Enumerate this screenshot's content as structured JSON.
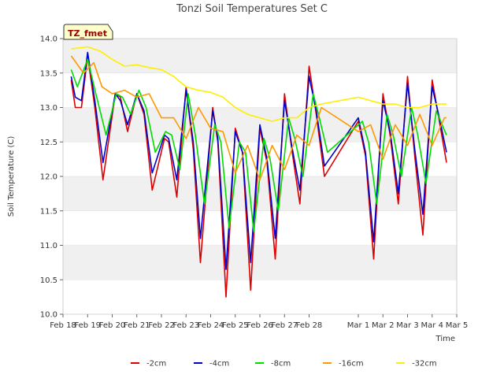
{
  "chart_data": {
    "type": "line",
    "title": "Tonzi Soil Temperatures Set C",
    "xlabel": "Time",
    "ylabel": "Soil Temperature (C)",
    "badge": "TZ_fmet",
    "ylim": [
      10.0,
      14.0
    ],
    "yticks": [
      10.0,
      10.5,
      11.0,
      11.5,
      12.0,
      12.5,
      13.0,
      13.5,
      14.0
    ],
    "ytick_labels": [
      "10.0",
      "10.5",
      "11.0",
      "11.5",
      "12.0",
      "12.5",
      "13.0",
      "13.5",
      "14.0"
    ],
    "xlim": [
      "2024-02-18",
      "2024-03-05"
    ],
    "xticks": [
      "2024-02-18",
      "2024-02-19",
      "2024-02-20",
      "2024-02-21",
      "2024-02-22",
      "2024-02-23",
      "2024-02-24",
      "2024-02-25",
      "2024-02-26",
      "2024-02-27",
      "2024-02-28",
      "2024-03-01",
      "2024-03-02",
      "2024-03-03",
      "2024-03-04",
      "2024-03-05"
    ],
    "xtick_labels": [
      "Feb 18",
      "Feb 19",
      "Feb 20",
      "Feb 21",
      "Feb 22",
      "Feb 23",
      "Feb 24",
      "Feb 25",
      "Feb 26",
      "Feb 27",
      "Feb 28",
      "Mar 1",
      "Mar 2",
      "Mar 3",
      "Mar 4",
      "Mar 5"
    ],
    "grid": "horizontal bands",
    "legend_position": "bottom",
    "series": [
      {
        "name": "-2cm",
        "color": "#dd0000",
        "x": [
          "2024-02-18T08:00",
          "2024-02-18T12:00",
          "2024-02-18T18:00",
          "2024-02-19T00:00",
          "2024-02-19T07:00",
          "2024-02-19T15:00",
          "2024-02-20T03:00",
          "2024-02-20T08:00",
          "2024-02-20T15:00",
          "2024-02-21T00:00",
          "2024-02-21T07:00",
          "2024-02-21T15:00",
          "2024-02-22T03:00",
          "2024-02-22T07:00",
          "2024-02-22T15:00",
          "2024-02-23T00:00",
          "2024-02-23T07:00",
          "2024-02-23T14:00",
          "2024-02-24T02:00",
          "2024-02-24T07:00",
          "2024-02-24T15:00",
          "2024-02-25T00:00",
          "2024-02-25T07:00",
          "2024-02-25T15:00",
          "2024-02-26T00:00",
          "2024-02-26T07:00",
          "2024-02-26T15:00",
          "2024-02-27T00:00",
          "2024-02-27T07:00",
          "2024-02-27T15:00",
          "2024-02-28T00:00",
          "2024-02-28T07:00",
          "2024-02-28T15:00",
          "2024-03-01T00:00",
          "2024-03-01T07:00",
          "2024-03-01T15:00",
          "2024-03-02T00:00",
          "2024-03-02T07:00",
          "2024-03-02T15:00",
          "2024-03-03T00:00",
          "2024-03-03T07:00",
          "2024-03-03T15:00",
          "2024-03-04T00:00",
          "2024-03-04T07:00",
          "2024-03-04T14:00"
        ],
        "y": [
          13.4,
          13.0,
          13.0,
          13.75,
          13.0,
          11.95,
          13.2,
          13.15,
          12.65,
          13.2,
          12.9,
          11.8,
          12.55,
          12.5,
          11.7,
          13.3,
          12.4,
          10.75,
          13.0,
          12.5,
          10.25,
          12.7,
          12.35,
          10.35,
          12.7,
          12.2,
          10.8,
          13.2,
          12.4,
          11.6,
          13.6,
          12.9,
          12.0,
          12.8,
          12.3,
          10.8,
          13.2,
          12.6,
          11.6,
          13.45,
          12.3,
          11.15,
          13.4,
          12.8,
          12.2
        ]
      },
      {
        "name": "-4cm",
        "color": "#0000cc",
        "x": [
          "2024-02-18T08:00",
          "2024-02-18T12:00",
          "2024-02-18T18:00",
          "2024-02-19T00:00",
          "2024-02-19T07:00",
          "2024-02-19T15:00",
          "2024-02-20T03:00",
          "2024-02-20T08:00",
          "2024-02-20T15:00",
          "2024-02-21T00:00",
          "2024-02-21T07:00",
          "2024-02-21T15:00",
          "2024-02-22T03:00",
          "2024-02-22T07:00",
          "2024-02-22T15:00",
          "2024-02-23T00:00",
          "2024-02-23T07:00",
          "2024-02-23T14:00",
          "2024-02-24T02:00",
          "2024-02-24T07:00",
          "2024-02-24T15:00",
          "2024-02-25T00:00",
          "2024-02-25T07:00",
          "2024-02-25T15:00",
          "2024-02-26T00:00",
          "2024-02-26T07:00",
          "2024-02-26T15:00",
          "2024-02-27T00:00",
          "2024-02-27T07:00",
          "2024-02-27T15:00",
          "2024-02-28T00:00",
          "2024-02-28T07:00",
          "2024-02-28T15:00",
          "2024-03-01T00:00",
          "2024-03-01T07:00",
          "2024-03-01T15:00",
          "2024-03-02T00:00",
          "2024-03-02T07:00",
          "2024-03-02T15:00",
          "2024-03-03T00:00",
          "2024-03-03T07:00",
          "2024-03-03T15:00",
          "2024-03-04T00:00",
          "2024-03-04T07:00",
          "2024-03-04T14:00"
        ],
        "y": [
          13.45,
          13.15,
          13.1,
          13.8,
          13.1,
          12.2,
          13.2,
          13.1,
          12.75,
          13.2,
          12.95,
          12.05,
          12.6,
          12.55,
          11.95,
          13.25,
          12.5,
          11.1,
          12.95,
          12.55,
          10.65,
          12.65,
          12.35,
          10.75,
          12.75,
          12.25,
          11.1,
          13.1,
          12.45,
          11.8,
          13.45,
          12.95,
          12.15,
          12.85,
          12.35,
          11.05,
          13.1,
          12.65,
          11.75,
          13.35,
          12.4,
          11.45,
          13.3,
          12.85,
          12.35
        ]
      },
      {
        "name": "-8cm",
        "color": "#00dd00",
        "x": [
          "2024-02-18T08:00",
          "2024-02-18T14:00",
          "2024-02-19T00:00",
          "2024-02-19T08:00",
          "2024-02-19T18:00",
          "2024-02-20T04:00",
          "2024-02-20T10:00",
          "2024-02-20T18:00",
          "2024-02-21T02:00",
          "2024-02-21T09:00",
          "2024-02-21T18:00",
          "2024-02-22T04:00",
          "2024-02-22T10:00",
          "2024-02-22T18:00",
          "2024-02-23T02:00",
          "2024-02-23T09:00",
          "2024-02-23T18:00",
          "2024-02-24T04:00",
          "2024-02-24T10:00",
          "2024-02-24T18:00",
          "2024-02-25T04:00",
          "2024-02-25T10:00",
          "2024-02-25T18:00",
          "2024-02-26T04:00",
          "2024-02-26T10:00",
          "2024-02-26T18:00",
          "2024-02-27T04:00",
          "2024-02-27T10:00",
          "2024-02-27T18:00",
          "2024-02-28T04:00",
          "2024-02-28T10:00",
          "2024-02-28T18:00",
          "2024-03-01T04:00",
          "2024-03-01T10:00",
          "2024-03-01T18:00",
          "2024-03-02T04:00",
          "2024-03-02T10:00",
          "2024-03-02T18:00",
          "2024-03-03T04:00",
          "2024-03-03T10:00",
          "2024-03-03T18:00",
          "2024-03-04T04:00",
          "2024-03-04T14:00"
        ],
        "y": [
          13.55,
          13.3,
          13.7,
          13.2,
          12.6,
          13.2,
          13.15,
          12.9,
          13.25,
          13.0,
          12.35,
          12.65,
          12.6,
          12.1,
          13.2,
          12.6,
          11.6,
          12.75,
          12.5,
          11.25,
          12.5,
          12.35,
          11.2,
          12.55,
          12.25,
          11.5,
          12.85,
          12.55,
          12.0,
          13.2,
          12.85,
          12.35,
          12.8,
          12.5,
          11.6,
          12.9,
          12.6,
          12.0,
          13.0,
          12.6,
          11.9,
          12.95,
          12.6
        ]
      },
      {
        "name": "-16cm",
        "color": "#ff9900",
        "x": [
          "2024-02-18T08:00",
          "2024-02-18T20:00",
          "2024-02-19T06:00",
          "2024-02-19T14:00",
          "2024-02-20T00:00",
          "2024-02-20T12:00",
          "2024-02-21T00:00",
          "2024-02-21T12:00",
          "2024-02-22T00:00",
          "2024-02-22T12:00",
          "2024-02-23T00:00",
          "2024-02-23T12:00",
          "2024-02-24T00:00",
          "2024-02-24T12:00",
          "2024-02-25T00:00",
          "2024-02-25T12:00",
          "2024-02-26T00:00",
          "2024-02-26T12:00",
          "2024-02-27T00:00",
          "2024-02-27T12:00",
          "2024-02-28T00:00",
          "2024-02-28T12:00",
          "2024-03-01T00:00",
          "2024-03-01T12:00",
          "2024-03-02T00:00",
          "2024-03-02T12:00",
          "2024-03-03T00:00",
          "2024-03-03T12:00",
          "2024-03-04T00:00",
          "2024-03-04T12:00",
          "2024-03-04T14:00"
        ],
        "y": [
          13.75,
          13.5,
          13.65,
          13.3,
          13.2,
          13.25,
          13.15,
          13.2,
          12.85,
          12.85,
          12.55,
          13.0,
          12.7,
          12.65,
          12.05,
          12.45,
          11.95,
          12.45,
          12.1,
          12.6,
          12.45,
          13.0,
          12.65,
          12.75,
          12.25,
          12.75,
          12.45,
          12.9,
          12.45,
          12.85,
          12.85
        ]
      },
      {
        "name": "-32cm",
        "color": "#ffee00",
        "x": [
          "2024-02-18T08:00",
          "2024-02-19T00:00",
          "2024-02-19T12:00",
          "2024-02-20T00:00",
          "2024-02-20T12:00",
          "2024-02-21T00:00",
          "2024-02-21T12:00",
          "2024-02-22T00:00",
          "2024-02-22T12:00",
          "2024-02-23T00:00",
          "2024-02-23T12:00",
          "2024-02-24T00:00",
          "2024-02-24T12:00",
          "2024-02-25T00:00",
          "2024-02-25T12:00",
          "2024-02-26T00:00",
          "2024-02-26T12:00",
          "2024-02-27T00:00",
          "2024-02-27T12:00",
          "2024-02-28T00:00",
          "2024-02-28T12:00",
          "2024-03-01T00:00",
          "2024-03-01T12:00",
          "2024-03-02T00:00",
          "2024-03-02T12:00",
          "2024-03-03T00:00",
          "2024-03-03T12:00",
          "2024-03-04T00:00",
          "2024-03-04T14:00"
        ],
        "y": [
          13.85,
          13.88,
          13.82,
          13.7,
          13.6,
          13.62,
          13.58,
          13.55,
          13.45,
          13.3,
          13.25,
          13.22,
          13.15,
          13.0,
          12.9,
          12.85,
          12.8,
          12.85,
          12.85,
          13.0,
          13.05,
          13.15,
          13.1,
          13.05,
          13.05,
          13.0,
          13.0,
          13.05,
          13.05
        ]
      }
    ]
  }
}
